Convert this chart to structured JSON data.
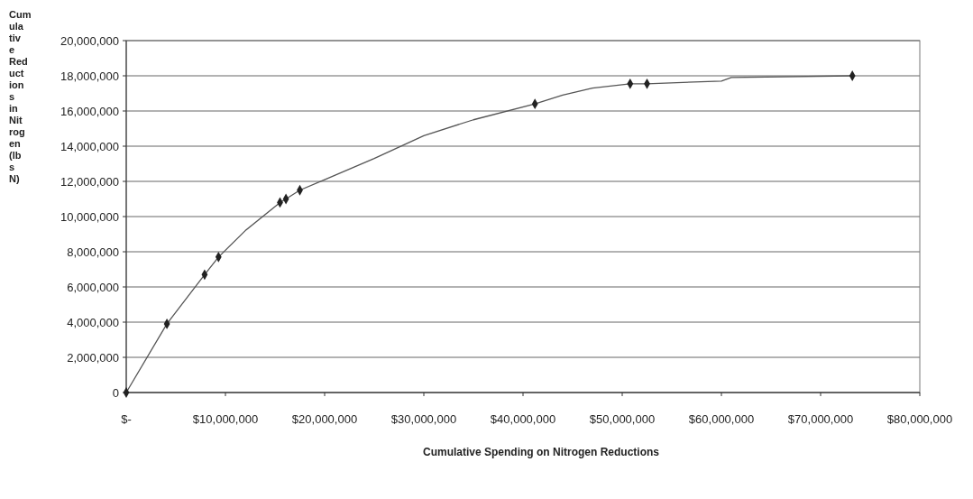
{
  "chart_data": {
    "type": "line",
    "xlabel": "Cumulative Spending on Nitrogen Reductions",
    "ylabel": "Cumulative Reductions in Nitrogen (lbs N)",
    "xlim": [
      0,
      80000000
    ],
    "ylim": [
      0,
      20000000
    ],
    "xticks": [
      {
        "value": 0,
        "label": "$-"
      },
      {
        "value": 10000000,
        "label": "$10,000,000"
      },
      {
        "value": 20000000,
        "label": "$20,000,000"
      },
      {
        "value": 30000000,
        "label": "$30,000,000"
      },
      {
        "value": 40000000,
        "label": "$40,000,000"
      },
      {
        "value": 50000000,
        "label": "$50,000,000"
      },
      {
        "value": 60000000,
        "label": "$60,000,000"
      },
      {
        "value": 70000000,
        "label": "$70,000,000"
      },
      {
        "value": 80000000,
        "label": "$80,000,000"
      }
    ],
    "yticks": [
      {
        "value": 0,
        "label": "0"
      },
      {
        "value": 2000000,
        "label": "2,000,000"
      },
      {
        "value": 4000000,
        "label": "4,000,000"
      },
      {
        "value": 6000000,
        "label": "6,000,000"
      },
      {
        "value": 8000000,
        "label": "8,000,000"
      },
      {
        "value": 10000000,
        "label": "10,000,000"
      },
      {
        "value": 12000000,
        "label": "12,000,000"
      },
      {
        "value": 14000000,
        "label": "14,000,000"
      },
      {
        "value": 16000000,
        "label": "16,000,000"
      },
      {
        "value": 18000000,
        "label": "18,000,000"
      },
      {
        "value": 20000000,
        "label": "20,000,000"
      }
    ],
    "grid": "y",
    "series": [
      {
        "type": "line",
        "color": "#555555",
        "marker": "none",
        "x": [
          0,
          4100000,
          7900000,
          9300000,
          12000000,
          15500000,
          16100000,
          17500000,
          20000000,
          25000000,
          30000000,
          35000000,
          41200000,
          44000000,
          47000000,
          50800000,
          52500000,
          60000000,
          61000000,
          73200000
        ],
        "values": [
          0,
          3900000,
          6700000,
          7700000,
          9200000,
          10800000,
          11000000,
          11500000,
          12100000,
          13300000,
          14600000,
          15500000,
          16400000,
          16900000,
          17300000,
          17550000,
          17550000,
          17700000,
          17900000,
          18000000
        ]
      },
      {
        "type": "scatter",
        "color": "#222222",
        "marker": "diamond",
        "x": [
          0,
          4100000,
          7900000,
          9300000,
          15500000,
          16100000,
          17500000,
          41200000,
          50800000,
          52500000,
          73200000
        ],
        "values": [
          0,
          3900000,
          6700000,
          7700000,
          10800000,
          11000000,
          11500000,
          16400000,
          17550000,
          17550000,
          18000000
        ]
      }
    ]
  }
}
